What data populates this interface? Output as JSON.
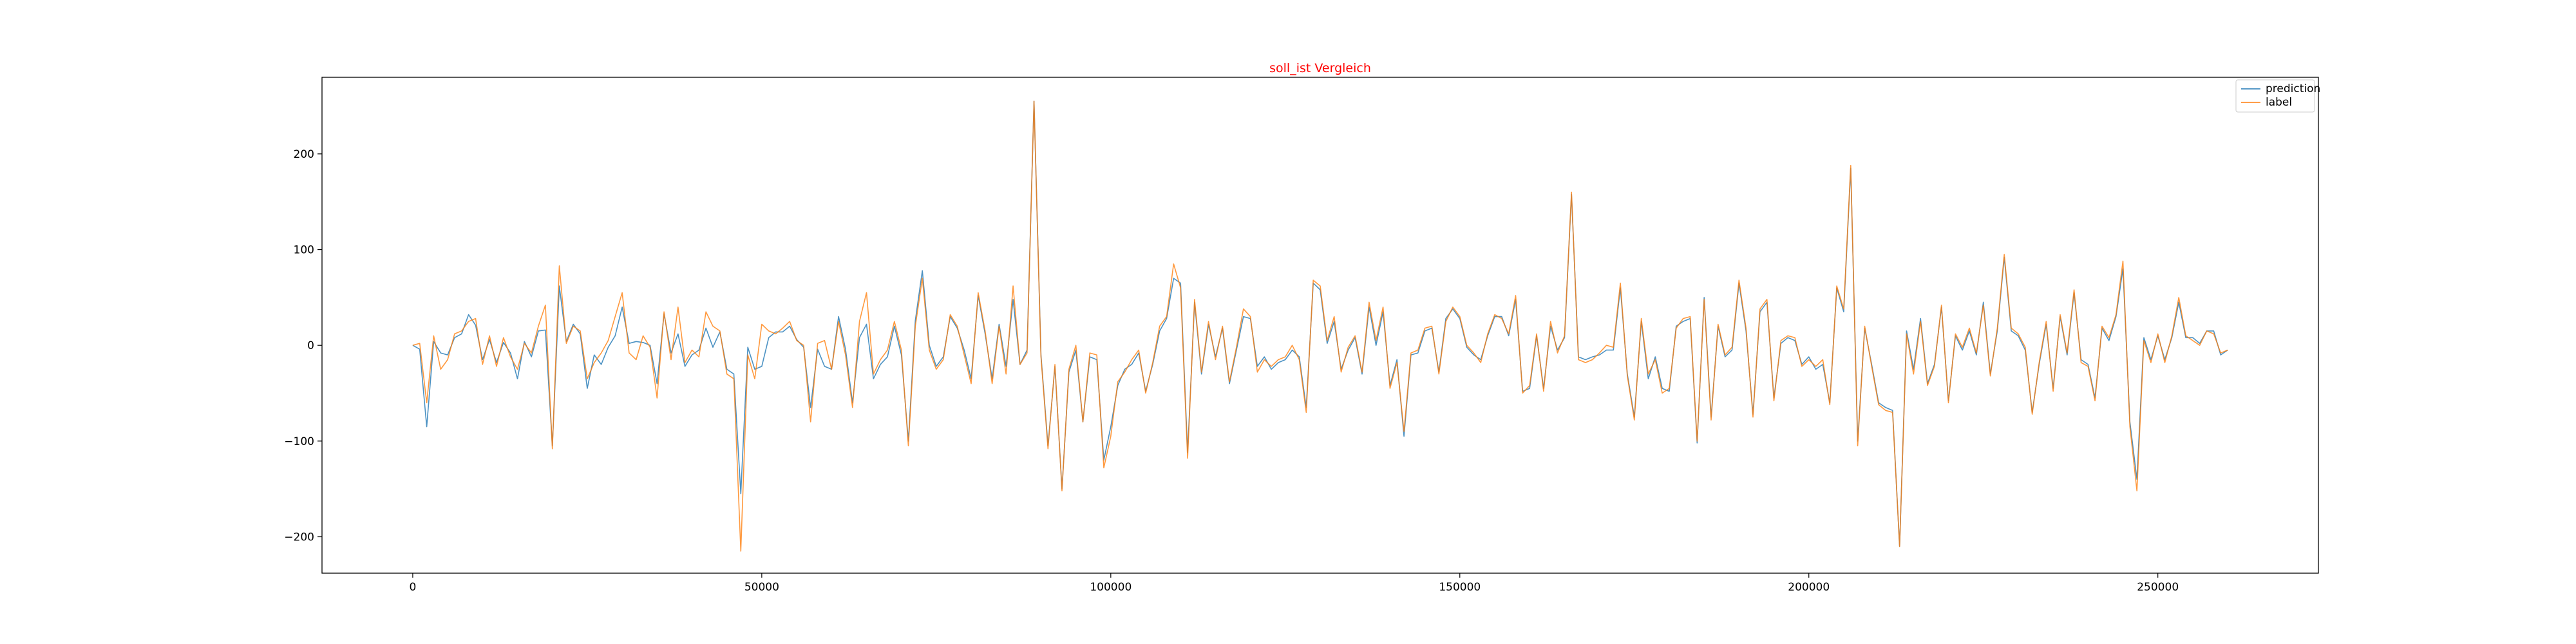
{
  "chart_data": {
    "type": "line",
    "title": "soll_ist Vergleich",
    "title_color": "#ff0000",
    "xlabel": "",
    "ylabel": "",
    "xlim": [
      -13000,
      273000
    ],
    "ylim": [
      -238,
      280
    ],
    "xticks": [
      0,
      50000,
      100000,
      150000,
      200000,
      250000
    ],
    "xtick_labels": [
      "0",
      "50000",
      "100000",
      "150000",
      "200000",
      "250000"
    ],
    "yticks": [
      -200,
      -100,
      0,
      100,
      200
    ],
    "ytick_labels": [
      "−200",
      "−100",
      "0",
      "100",
      "200"
    ],
    "grid": false,
    "legend_position": "top-right",
    "series": [
      {
        "name": "prediction",
        "color": "#1f77b4",
        "x": [
          0,
          1000,
          2000,
          3000,
          4000,
          5000,
          6000,
          7000,
          8000,
          9000,
          10000,
          11000,
          12000,
          13000,
          14000,
          15000,
          16000,
          17000,
          18000,
          19000,
          20000,
          21000,
          22000,
          23000,
          24000,
          25000,
          26000,
          27000,
          28000,
          29000,
          30000,
          31000,
          32000,
          33000,
          34000,
          35000,
          36000,
          37000,
          38000,
          39000,
          40000,
          41000,
          42000,
          43000,
          44000,
          45000,
          46000,
          47000,
          48000,
          49000,
          50000,
          51000,
          52000,
          53000,
          54000,
          55000,
          56000,
          57000,
          58000,
          59000,
          60000,
          61000,
          62000,
          63000,
          64000,
          65000,
          66000,
          67000,
          68000,
          69000,
          70000,
          71000,
          72000,
          73000,
          74000,
          75000,
          76000,
          77000,
          78000,
          79000,
          80000,
          81000,
          82000,
          83000,
          84000,
          85000,
          86000,
          87000,
          88000,
          89000,
          90000,
          91000,
          92000,
          93000,
          94000,
          95000,
          96000,
          97000,
          98000,
          99000,
          100000,
          101000,
          102000,
          103000,
          104000,
          105000,
          106000,
          107000,
          108000,
          109000,
          110000,
          111000,
          112000,
          113000,
          114000,
          115000,
          116000,
          117000,
          118000,
          119000,
          120000,
          121000,
          122000,
          123000,
          124000,
          125000,
          126000,
          127000,
          128000,
          129000,
          130000,
          131000,
          132000,
          133000,
          134000,
          135000,
          136000,
          137000,
          138000,
          139000,
          140000,
          141000,
          142000,
          143000,
          144000,
          145000,
          146000,
          147000,
          148000,
          149000,
          150000,
          151000,
          152000,
          153000,
          154000,
          155000,
          156000,
          157000,
          158000,
          159000,
          160000,
          161000,
          162000,
          163000,
          164000,
          165000,
          166000,
          167000,
          168000,
          169000,
          170000,
          171000,
          172000,
          173000,
          174000,
          175000,
          176000,
          177000,
          178000,
          179000,
          180000,
          181000,
          182000,
          183000,
          184000,
          185000,
          186000,
          187000,
          188000,
          189000,
          190000,
          191000,
          192000,
          193000,
          194000,
          195000,
          196000,
          197000,
          198000,
          199000,
          200000,
          201000,
          202000,
          203000,
          204000,
          205000,
          206000,
          207000,
          208000,
          209000,
          210000,
          211000,
          212000,
          213000,
          214000,
          215000,
          216000,
          217000,
          218000,
          219000,
          220000,
          221000,
          222000,
          223000,
          224000,
          225000,
          226000,
          227000,
          228000,
          229000,
          230000,
          231000,
          232000,
          233000,
          234000,
          235000,
          236000,
          237000,
          238000,
          239000,
          240000,
          241000,
          242000,
          243000,
          244000,
          245000,
          246000,
          247000,
          248000,
          249000,
          250000,
          251000,
          252000,
          253000,
          254000,
          255000,
          256000,
          257000,
          258000,
          259000,
          260000
        ],
        "values": [
          0,
          -4,
          -85,
          4,
          -8,
          -10,
          8,
          12,
          32,
          21,
          -15,
          6,
          -18,
          3,
          -8,
          -35,
          4,
          -12,
          15,
          16,
          -105,
          62,
          4,
          22,
          12,
          -45,
          -10,
          -20,
          -2,
          10,
          40,
          2,
          4,
          3,
          0,
          -40,
          33,
          -8,
          12,
          -22,
          -10,
          -5,
          18,
          -2,
          14,
          -25,
          -30,
          -155,
          -2,
          -25,
          -22,
          8,
          14,
          14,
          20,
          6,
          -2,
          -65,
          -4,
          -22,
          -25,
          30,
          -4,
          -60,
          8,
          22,
          -35,
          -20,
          -12,
          20,
          -10,
          -100,
          26,
          78,
          0,
          -22,
          -12,
          30,
          18,
          -5,
          -35,
          52,
          12,
          -35,
          22,
          -22,
          48,
          -20,
          -5,
          255,
          -10,
          -105,
          -22,
          -150,
          -28,
          -5,
          -80,
          -12,
          -15,
          -120,
          -85,
          -42,
          -25,
          -20,
          -8,
          -48,
          -20,
          15,
          28,
          70,
          65,
          -112,
          45,
          -30,
          22,
          -12,
          18,
          -40,
          -5,
          30,
          28,
          -22,
          -12,
          -25,
          -18,
          -15,
          -5,
          -12,
          -65,
          65,
          58,
          2,
          25,
          -25,
          -5,
          8,
          -30,
          40,
          0,
          35,
          -42,
          -15,
          -95,
          -10,
          -8,
          15,
          18,
          -28,
          28,
          38,
          28,
          -2,
          -10,
          -15,
          10,
          30,
          30,
          10,
          48,
          -48,
          -45,
          10,
          -45,
          20,
          -5,
          8,
          158,
          -12,
          -15,
          -12,
          -10,
          -5,
          -5,
          60,
          -30,
          -75,
          25,
          -35,
          -12,
          -45,
          -48,
          20,
          25,
          28,
          -102,
          50,
          -75,
          20,
          -12,
          -5,
          65,
          15,
          -72,
          35,
          45,
          -55,
          2,
          8,
          5,
          -20,
          -12,
          -25,
          -20,
          -60,
          60,
          35,
          185,
          -100,
          18,
          -20,
          -60,
          -65,
          -68,
          -210,
          15,
          -25,
          28,
          -40,
          -20,
          40,
          -58,
          10,
          -5,
          15,
          -10,
          45,
          -30,
          15,
          92,
          15,
          10,
          -5,
          -70,
          -20,
          22,
          -45,
          30,
          -10,
          55,
          -15,
          -20,
          -55,
          18,
          5,
          30,
          80,
          -80,
          -140,
          8,
          -15,
          10,
          -15,
          8,
          45,
          8,
          8,
          2,
          15,
          15,
          -10,
          -5
        ],
        "opacity": 0.8
      },
      {
        "name": "label",
        "color": "#ff7f0e",
        "x": [
          0,
          1000,
          2000,
          3000,
          4000,
          5000,
          6000,
          7000,
          8000,
          9000,
          10000,
          11000,
          12000,
          13000,
          14000,
          15000,
          16000,
          17000,
          18000,
          19000,
          20000,
          21000,
          22000,
          23000,
          24000,
          25000,
          26000,
          27000,
          28000,
          29000,
          30000,
          31000,
          32000,
          33000,
          34000,
          35000,
          36000,
          37000,
          38000,
          39000,
          40000,
          41000,
          42000,
          43000,
          44000,
          45000,
          46000,
          47000,
          48000,
          49000,
          50000,
          51000,
          52000,
          53000,
          54000,
          55000,
          56000,
          57000,
          58000,
          59000,
          60000,
          61000,
          62000,
          63000,
          64000,
          65000,
          66000,
          67000,
          68000,
          69000,
          70000,
          71000,
          72000,
          73000,
          74000,
          75000,
          76000,
          77000,
          78000,
          79000,
          80000,
          81000,
          82000,
          83000,
          84000,
          85000,
          86000,
          87000,
          88000,
          89000,
          90000,
          91000,
          92000,
          93000,
          94000,
          95000,
          96000,
          97000,
          98000,
          99000,
          100000,
          101000,
          102000,
          103000,
          104000,
          105000,
          106000,
          107000,
          108000,
          109000,
          110000,
          111000,
          112000,
          113000,
          114000,
          115000,
          116000,
          117000,
          118000,
          119000,
          120000,
          121000,
          122000,
          123000,
          124000,
          125000,
          126000,
          127000,
          128000,
          129000,
          130000,
          131000,
          132000,
          133000,
          134000,
          135000,
          136000,
          137000,
          138000,
          139000,
          140000,
          141000,
          142000,
          143000,
          144000,
          145000,
          146000,
          147000,
          148000,
          149000,
          150000,
          151000,
          152000,
          153000,
          154000,
          155000,
          156000,
          157000,
          158000,
          159000,
          160000,
          161000,
          162000,
          163000,
          164000,
          165000,
          166000,
          167000,
          168000,
          169000,
          170000,
          171000,
          172000,
          173000,
          174000,
          175000,
          176000,
          177000,
          178000,
          179000,
          180000,
          181000,
          182000,
          183000,
          184000,
          185000,
          186000,
          187000,
          188000,
          189000,
          190000,
          191000,
          192000,
          193000,
          194000,
          195000,
          196000,
          197000,
          198000,
          199000,
          200000,
          201000,
          202000,
          203000,
          204000,
          205000,
          206000,
          207000,
          208000,
          209000,
          210000,
          211000,
          212000,
          213000,
          214000,
          215000,
          216000,
          217000,
          218000,
          219000,
          220000,
          221000,
          222000,
          223000,
          224000,
          225000,
          226000,
          227000,
          228000,
          229000,
          230000,
          231000,
          232000,
          233000,
          234000,
          235000,
          236000,
          237000,
          238000,
          239000,
          240000,
          241000,
          242000,
          243000,
          244000,
          245000,
          246000,
          247000,
          248000,
          249000,
          250000,
          251000,
          252000,
          253000,
          254000,
          255000,
          256000,
          257000,
          258000,
          259000,
          260000
        ],
        "values": [
          0,
          2,
          -60,
          10,
          -25,
          -15,
          12,
          15,
          25,
          28,
          -20,
          10,
          -22,
          8,
          -12,
          -25,
          2,
          -8,
          20,
          42,
          -108,
          83,
          2,
          20,
          15,
          -35,
          -18,
          -8,
          5,
          30,
          55,
          -8,
          -15,
          10,
          -2,
          -55,
          35,
          -15,
          40,
          -18,
          -5,
          -12,
          35,
          20,
          15,
          -30,
          -35,
          -215,
          -10,
          -35,
          22,
          15,
          12,
          18,
          25,
          5,
          0,
          -80,
          2,
          5,
          -25,
          25,
          -10,
          -65,
          25,
          55,
          -30,
          -15,
          -5,
          25,
          -5,
          -105,
          20,
          70,
          -5,
          -25,
          -15,
          32,
          20,
          -10,
          -40,
          55,
          15,
          -40,
          20,
          -30,
          62,
          -20,
          -8,
          255,
          -12,
          -108,
          -20,
          -152,
          -25,
          0,
          -80,
          -8,
          -10,
          -128,
          -95,
          -38,
          -28,
          -15,
          -5,
          -50,
          -18,
          20,
          30,
          85,
          60,
          -118,
          48,
          -28,
          25,
          -15,
          20,
          -38,
          -2,
          38,
          30,
          -28,
          -15,
          -22,
          -15,
          -12,
          0,
          -15,
          -70,
          68,
          62,
          5,
          30,
          -28,
          -2,
          10,
          -28,
          45,
          5,
          40,
          -45,
          -18,
          -90,
          -8,
          -5,
          18,
          20,
          -30,
          25,
          40,
          30,
          0,
          -8,
          -18,
          12,
          32,
          28,
          12,
          52,
          -50,
          -42,
          12,
          -48,
          25,
          -8,
          10,
          160,
          -15,
          -18,
          -15,
          -8,
          0,
          -2,
          65,
          -32,
          -78,
          28,
          -30,
          -15,
          -50,
          -45,
          18,
          28,
          30,
          -100,
          48,
          -78,
          22,
          -10,
          -2,
          68,
          18,
          -75,
          38,
          48,
          -58,
          5,
          10,
          8,
          -22,
          -15,
          -22,
          -15,
          -62,
          62,
          38,
          188,
          -105,
          20,
          -22,
          -62,
          -68,
          -70,
          -210,
          12,
          -30,
          25,
          -42,
          -22,
          42,
          -60,
          12,
          -2,
          18,
          -8,
          42,
          -32,
          18,
          95,
          18,
          12,
          -2,
          -72,
          -18,
          25,
          -48,
          32,
          -8,
          58,
          -18,
          -22,
          -58,
          20,
          8,
          32,
          88,
          -85,
          -152,
          5,
          -18,
          12,
          -18,
          10,
          50,
          10,
          5,
          0,
          15,
          12,
          -8,
          -5
        ],
        "opacity": 0.8
      }
    ]
  }
}
